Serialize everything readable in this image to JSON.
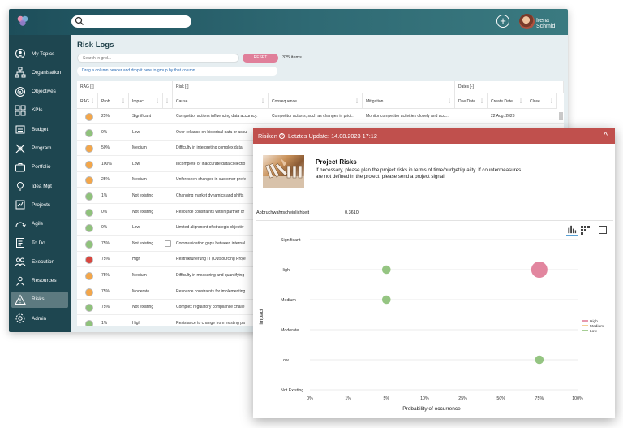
{
  "topbar": {
    "search_value": "",
    "username": "Irena Schmid"
  },
  "sidebar": {
    "items": [
      {
        "label": "My Topics",
        "icon": "user-icon",
        "active": false
      },
      {
        "label": "Organisation",
        "icon": "org-chart-icon",
        "active": false
      },
      {
        "label": "Objectives",
        "icon": "target-icon",
        "active": false
      },
      {
        "label": "KPIs",
        "icon": "kpi-grid-icon",
        "active": false
      },
      {
        "label": "Budget",
        "icon": "budget-icon",
        "active": false
      },
      {
        "label": "Program",
        "icon": "program-icon",
        "active": false
      },
      {
        "label": "Portfolio",
        "icon": "portfolio-icon",
        "active": false
      },
      {
        "label": "Idea Mgt",
        "icon": "lightbulb-icon",
        "active": false
      },
      {
        "label": "Projects",
        "icon": "projects-icon",
        "active": false
      },
      {
        "label": "Agile",
        "icon": "agile-icon",
        "active": false
      },
      {
        "label": "To Do",
        "icon": "todo-icon",
        "active": false
      },
      {
        "label": "Execution",
        "icon": "execution-icon",
        "active": false
      },
      {
        "label": "Resources",
        "icon": "resources-icon",
        "active": false
      },
      {
        "label": "Risks",
        "icon": "warning-icon",
        "active": true
      },
      {
        "label": "Admin",
        "icon": "gear-icon",
        "active": false
      }
    ]
  },
  "main": {
    "title": "Risk Logs",
    "grid_search_placeholder": "Search in grid...",
    "reset_label": "RESET",
    "item_count": "325 items",
    "group_hint": "Drag a column header and drop it here to group by that column",
    "group_headers": [
      "RAG [-]",
      "Risk [-]",
      "Dates [-]"
    ],
    "columns": [
      "RAG",
      "Prob.",
      "Impact",
      "",
      "Cause",
      "Consequence",
      "Mitigation",
      "Due Date",
      "Create Date",
      "Close ..."
    ],
    "rows": [
      {
        "rag": "orange",
        "prob": "25%",
        "impact": "Significant",
        "cause": "Competitor actions influencing data accuracy.",
        "consequence": "Competitor actions, such as changes in prici...",
        "mitigation": "Monitor competitor activities closely and acc...",
        "due": "",
        "create": "22 Aug. 2023",
        "close": ""
      },
      {
        "rag": "green",
        "prob": "0%",
        "impact": "Low",
        "cause": "Over-reliance on historical data or assu",
        "consequence": "",
        "mitigation": "",
        "due": "",
        "create": "",
        "close": ""
      },
      {
        "rag": "orange",
        "prob": "50%",
        "impact": "Medium",
        "cause": "Difficulty in interpreting complex data",
        "consequence": "",
        "mitigation": "",
        "due": "",
        "create": "",
        "close": ""
      },
      {
        "rag": "orange",
        "prob": "100%",
        "impact": "Low",
        "cause": "Incomplete or inaccurate data collectio",
        "consequence": "",
        "mitigation": "",
        "due": "",
        "create": "",
        "close": ""
      },
      {
        "rag": "orange",
        "prob": "25%",
        "impact": "Medium",
        "cause": "Unforeseen changes in customer prefe",
        "consequence": "",
        "mitigation": "",
        "due": "",
        "create": "",
        "close": ""
      },
      {
        "rag": "green",
        "prob": "1%",
        "impact": "Not existing",
        "cause": "Changing market dynamics and shifts",
        "consequence": "",
        "mitigation": "",
        "due": "",
        "create": "",
        "close": ""
      },
      {
        "rag": "green",
        "prob": "0%",
        "impact": "Not existing",
        "cause": "Resource constraints within partner or",
        "consequence": "",
        "mitigation": "",
        "due": "",
        "create": "",
        "close": ""
      },
      {
        "rag": "green",
        "prob": "0%",
        "impact": "Low",
        "cause": "Limited alignment of strategic objectiv",
        "consequence": "",
        "mitigation": "",
        "due": "",
        "create": "",
        "close": ""
      },
      {
        "rag": "green",
        "prob": "75%",
        "impact": "Not existing",
        "cause": "Communication gaps between internal",
        "consequence": "",
        "mitigation": "",
        "due": "",
        "create": "",
        "close": ""
      },
      {
        "rag": "red",
        "prob": "75%",
        "impact": "High",
        "cause": "Restrukturierung IT (Outsourcing Proje",
        "consequence": "",
        "mitigation": "",
        "due": "",
        "create": "",
        "close": ""
      },
      {
        "rag": "orange",
        "prob": "75%",
        "impact": "Medium",
        "cause": "Difficulty in measuring and quantifying",
        "consequence": "",
        "mitigation": "",
        "due": "",
        "create": "",
        "close": ""
      },
      {
        "rag": "orange",
        "prob": "75%",
        "impact": "Moderate",
        "cause": "Resource constraints for implementing",
        "consequence": "",
        "mitigation": "",
        "due": "",
        "create": "",
        "close": ""
      },
      {
        "rag": "green",
        "prob": "75%",
        "impact": "Not existing",
        "cause": "Complex regulatory compliance challe",
        "consequence": "",
        "mitigation": "",
        "due": "",
        "create": "",
        "close": ""
      },
      {
        "rag": "green",
        "prob": "1%",
        "impact": "High",
        "cause": "Resistance to change from existing pa",
        "consequence": "",
        "mitigation": "",
        "due": "",
        "create": "",
        "close": ""
      }
    ],
    "rag_colors": {
      "orange": "#f3a64a",
      "green": "#8fc27b",
      "red": "#d9463f"
    }
  },
  "popup": {
    "header_title": "Risiken",
    "header_update": "Letztes Update: 14.08.2023 17:12",
    "header_color": "#c0504d",
    "pr_title": "Project Risks",
    "pr_text": "If necessary, please plan the project risks in terms of time/budget/quality. If countermeasures are not defined in the project, please send a project signal.",
    "metric_label": "Abbruchwahrscheinlichkeit",
    "metric_value": "0,3610"
  },
  "chart_data": {
    "type": "scatter",
    "xlabel": "Probability of occurrence",
    "ylabel": "Impact",
    "x_ticks": [
      "0%",
      "1%",
      "5%",
      "10%",
      "25%",
      "50%",
      "75%",
      "100%"
    ],
    "y_ticks": [
      "Not Existing",
      "Low",
      "Moderate",
      "Medium",
      "High",
      "Significant"
    ],
    "grid": true,
    "legend_position": "right",
    "series": [
      {
        "name": "High",
        "color": "#e07f9a",
        "points": [
          {
            "x": "75%",
            "y": "High",
            "size": "large"
          }
        ]
      },
      {
        "name": "Medium",
        "color": "#f3c27a",
        "points": []
      },
      {
        "name": "Low",
        "color": "#8fc27b",
        "points": [
          {
            "x": "5%",
            "y": "High",
            "size": "small"
          },
          {
            "x": "5%",
            "y": "Medium",
            "size": "small"
          },
          {
            "x": "75%",
            "y": "Low",
            "size": "small"
          }
        ]
      }
    ]
  }
}
